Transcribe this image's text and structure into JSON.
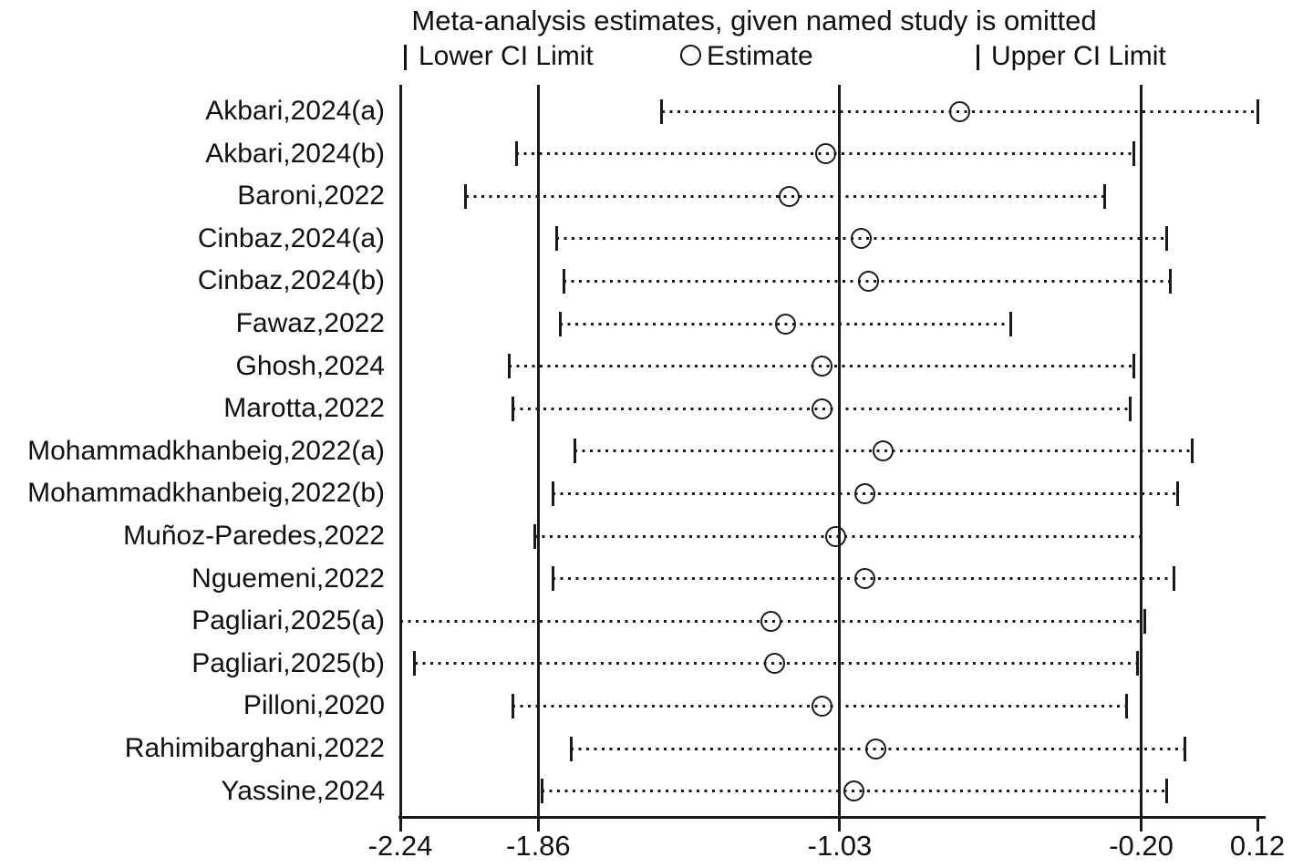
{
  "title": "Meta-analysis estimates, given named study is omitted",
  "legend": {
    "lower_label": "Lower CI Limit",
    "estimate_label": "Estimate",
    "upper_label": "Upper CI Limit"
  },
  "colors": {
    "foreground": "#1a1a1a",
    "background": "#ffffff"
  },
  "chart_data": {
    "type": "scatter",
    "subtype": "leave-one-out-forest",
    "title": "Meta-analysis estimates, given named study is omitted",
    "xlim": [
      -2.24,
      0.12
    ],
    "x_ticks": [
      {
        "value": -2.24,
        "label": "-2.24"
      },
      {
        "value": -1.86,
        "label": "-1.86"
      },
      {
        "value": -1.03,
        "label": "-1.03"
      },
      {
        "value": -0.2,
        "label": "-0.20"
      },
      {
        "value": 0.12,
        "label": "0.12"
      }
    ],
    "reference_lines": [
      -1.86,
      -1.03,
      -0.2
    ],
    "overall": {
      "lower": -1.86,
      "estimate": -1.03,
      "upper": -0.2
    },
    "grid": false,
    "legend_position": "top",
    "studies": [
      {
        "label": "Akbari,2024(a)",
        "lower": -1.52,
        "estimate": -0.7,
        "upper": 0.12
      },
      {
        "label": "Akbari,2024(b)",
        "lower": -1.92,
        "estimate": -1.07,
        "upper": -0.22
      },
      {
        "label": "Baroni,2022",
        "lower": -2.06,
        "estimate": -1.17,
        "upper": -0.3
      },
      {
        "label": "Cinbaz,2024(a)",
        "lower": -1.81,
        "estimate": -0.97,
        "upper": -0.13
      },
      {
        "label": "Cinbaz,2024(b)",
        "lower": -1.79,
        "estimate": -0.95,
        "upper": -0.12
      },
      {
        "label": "Fawaz,2022",
        "lower": -1.8,
        "estimate": -1.18,
        "upper": -0.56
      },
      {
        "label": "Ghosh,2024",
        "lower": -1.94,
        "estimate": -1.08,
        "upper": -0.22
      },
      {
        "label": "Marotta,2022",
        "lower": -1.93,
        "estimate": -1.08,
        "upper": -0.23
      },
      {
        "label": "Mohammadkhanbeig,2022(a)",
        "lower": -1.76,
        "estimate": -0.91,
        "upper": -0.06
      },
      {
        "label": "Mohammadkhanbeig,2022(b)",
        "lower": -1.82,
        "estimate": -0.96,
        "upper": -0.1
      },
      {
        "label": "Muñoz-Paredes,2022",
        "lower": -1.87,
        "estimate": -1.04,
        "upper": -0.2
      },
      {
        "label": "Nguemeni,2022",
        "lower": -1.82,
        "estimate": -0.96,
        "upper": -0.11
      },
      {
        "label": "Pagliari,2025(a)",
        "lower": -2.24,
        "estimate": -1.22,
        "upper": -0.19
      },
      {
        "label": "Pagliari,2025(b)",
        "lower": -2.2,
        "estimate": -1.21,
        "upper": -0.21
      },
      {
        "label": "Pilloni,2020",
        "lower": -1.93,
        "estimate": -1.08,
        "upper": -0.24
      },
      {
        "label": "Rahimibarghani,2022",
        "lower": -1.77,
        "estimate": -0.93,
        "upper": -0.08
      },
      {
        "label": "Yassine,2024",
        "lower": -1.85,
        "estimate": -0.99,
        "upper": -0.13
      }
    ]
  }
}
